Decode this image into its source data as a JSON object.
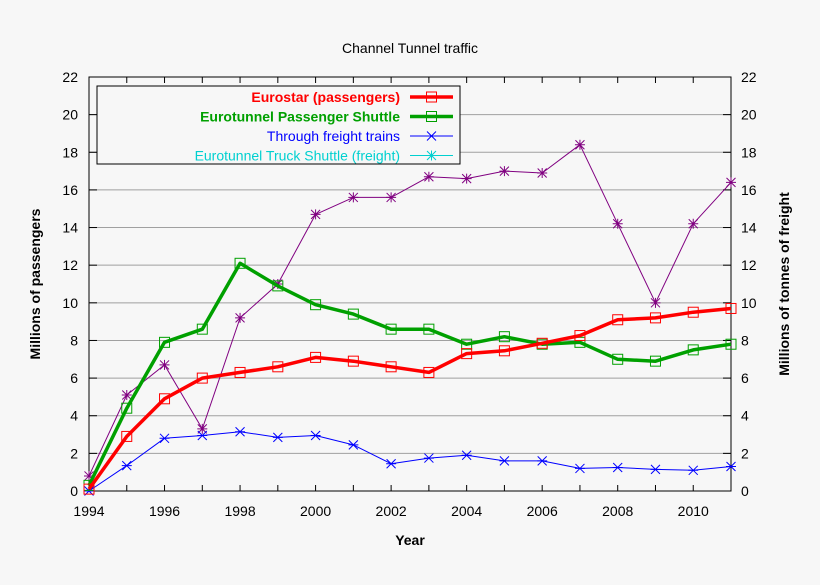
{
  "chart_data": {
    "type": "line",
    "title": "Channel Tunnel traffic",
    "xlabel": "Year",
    "ylabel": "Millions of passengers",
    "y2label": "Millions of tonnes of freight",
    "x": [
      1994,
      1995,
      1996,
      1997,
      1998,
      1999,
      2000,
      2001,
      2002,
      2003,
      2004,
      2005,
      2006,
      2007,
      2008,
      2009,
      2010,
      2011
    ],
    "xlim": [
      1994,
      2011
    ],
    "ylim": [
      0,
      22
    ],
    "y2lim": [
      0,
      22
    ],
    "x_ticks": [
      "1994",
      "1996",
      "1998",
      "2000",
      "2002",
      "2004",
      "2006",
      "2008",
      "2010"
    ],
    "y_ticks": [
      "0",
      "2",
      "4",
      "6",
      "8",
      "10",
      "12",
      "14",
      "16",
      "18",
      "20",
      "22"
    ],
    "grid": "horizontal",
    "legend_position": "top-left",
    "series": [
      {
        "name": "Eurostar (passengers)",
        "color": "#ff0000",
        "axis": "left",
        "marker": "square",
        "thick": true,
        "values": [
          0.1,
          2.9,
          4.9,
          6.0,
          6.3,
          6.6,
          7.1,
          6.9,
          6.6,
          6.3,
          7.3,
          7.45,
          7.85,
          8.26,
          9.1,
          9.2,
          9.5,
          9.7
        ]
      },
      {
        "name": "Eurotunnel Passenger Shuttle",
        "color": "#00a000",
        "axis": "left",
        "marker": "square",
        "thick": true,
        "values": [
          0.3,
          4.4,
          7.9,
          8.6,
          12.1,
          10.9,
          9.9,
          9.4,
          8.6,
          8.6,
          7.8,
          8.2,
          7.8,
          7.9,
          7.0,
          6.9,
          7.5,
          7.8
        ]
      },
      {
        "name": "Through freight trains",
        "color": "#0000ff",
        "axis": "right",
        "marker": "star",
        "thick": false,
        "values": [
          0.0,
          1.35,
          2.8,
          2.95,
          3.15,
          2.85,
          2.95,
          2.45,
          1.45,
          1.75,
          1.9,
          1.6,
          1.6,
          1.2,
          1.25,
          1.15,
          1.1,
          1.3
        ]
      },
      {
        "name": "Eurotunnel Truck Shuttle (freight)",
        "color": "#800080",
        "legend_color": "#00d0d0",
        "axis": "right",
        "marker": "asterisk",
        "thick": false,
        "values": [
          0.8,
          5.1,
          6.7,
          3.3,
          9.2,
          11.0,
          14.7,
          15.6,
          15.6,
          16.7,
          16.6,
          17.0,
          16.9,
          18.4,
          14.2,
          10.0,
          14.2,
          16.4
        ]
      }
    ]
  }
}
